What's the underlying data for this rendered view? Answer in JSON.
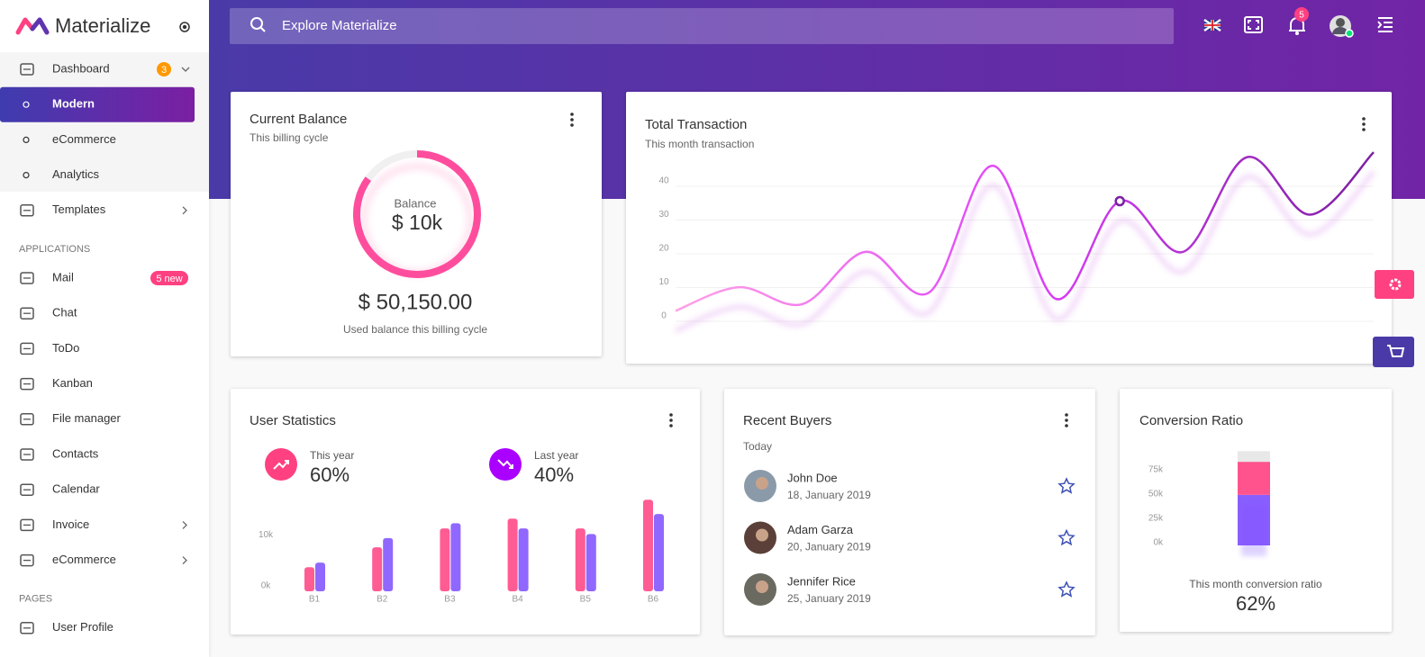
{
  "sidebar": {
    "brand": "Materialize",
    "menu": [
      {
        "label": "Dashboard",
        "badge": "3",
        "badge_color": "#ff9800",
        "items": [
          {
            "label": "Modern",
            "active": true
          },
          {
            "label": "eCommerce"
          },
          {
            "label": "Analytics"
          }
        ]
      },
      {
        "label": "Templates",
        "collapsed": true
      },
      {
        "heading": "APPLICATIONS"
      },
      {
        "label": "Mail",
        "badge": "5 new",
        "badge_color": "#ff4081"
      },
      {
        "label": "Chat"
      },
      {
        "label": "ToDo"
      },
      {
        "label": "Kanban"
      },
      {
        "label": "File manager"
      },
      {
        "label": "Contacts"
      },
      {
        "label": "Calendar"
      },
      {
        "label": "Invoice",
        "collapsed": true
      },
      {
        "label": "eCommerce",
        "collapsed": true
      },
      {
        "heading": "PAGES"
      },
      {
        "label": "User Profile"
      }
    ]
  },
  "header": {
    "search_placeholder": "Explore Materialize",
    "notifications": "5"
  },
  "balance": {
    "title": "Current Balance",
    "subtitle": "This billing cycle",
    "ring": {
      "type": "donut",
      "label": "Balance",
      "value_label": "$ 10k",
      "percent": 85,
      "color": "#ff4d9d"
    },
    "amount": "$ 50,150.00",
    "caption": "Used balance this billing cycle"
  },
  "transaction": {
    "title": "Total Transaction",
    "subtitle": "This month transaction",
    "chart": {
      "type": "line",
      "categories": [
        null,
        null,
        null,
        null,
        null,
        null,
        null,
        null,
        null,
        null,
        null,
        null
      ],
      "values": [
        1.5,
        8.5,
        3.5,
        19,
        7,
        44.5,
        5,
        34,
        19,
        47,
        30,
        48.5
      ],
      "ylim": [
        -2,
        48
      ],
      "yticks": [
        0,
        10,
        20,
        30,
        40
      ],
      "grid": true,
      "highlight": 7,
      "colors": [
        "#ffa2e6",
        "#e040fb",
        "#7b1fa2"
      ]
    }
  },
  "stats": {
    "title": "User Statistics",
    "items": [
      {
        "label": "This year",
        "value": "60%",
        "color": "#ff4081"
      },
      {
        "label": "Last year",
        "value": "40%",
        "color": "#aa00ff"
      }
    ],
    "chart": {
      "type": "bar",
      "categories": [
        "B1",
        "B2",
        "B3",
        "B4",
        "B5",
        "B6"
      ],
      "series": [
        {
          "color": "#ff4081",
          "values": [
            4700,
            8600,
            12300,
            14200,
            12300,
            17900
          ]
        },
        {
          "color": "#7c4dff",
          "values": [
            5600,
            10400,
            13300,
            12300,
            11200,
            15100
          ]
        }
      ],
      "ylim": [
        0,
        19000
      ],
      "yticks": [
        {
          "value": 0,
          "label": "0k"
        },
        {
          "value": 10000,
          "label": "10k"
        }
      ]
    }
  },
  "buyers": {
    "title": "Recent Buyers",
    "subtitle": "Today",
    "list": [
      {
        "name": "John Doe",
        "date": "18, January 2019"
      },
      {
        "name": "Adam Garza",
        "date": "20, January 2019"
      },
      {
        "name": "Jennifer Rice",
        "date": "25, January 2019"
      }
    ]
  },
  "conversion": {
    "title": "Conversion Ratio",
    "chart": {
      "type": "stacked-bar",
      "series": [
        {
          "color": "#7c4dff",
          "values": [
            52000
          ]
        },
        {
          "color": "#ff4081",
          "values": [
            34000
          ]
        },
        {
          "color": "#e6e6e6",
          "values": [
            11000
          ]
        }
      ],
      "ylim": [
        0,
        100000
      ],
      "yticks": [
        {
          "value": 0,
          "label": "0k"
        },
        {
          "value": 25000,
          "label": "25k"
        },
        {
          "value": 50000,
          "label": "50k"
        },
        {
          "value": 75000,
          "label": "75k"
        }
      ]
    },
    "caption": "This month conversion ratio",
    "ratio": "62%"
  }
}
